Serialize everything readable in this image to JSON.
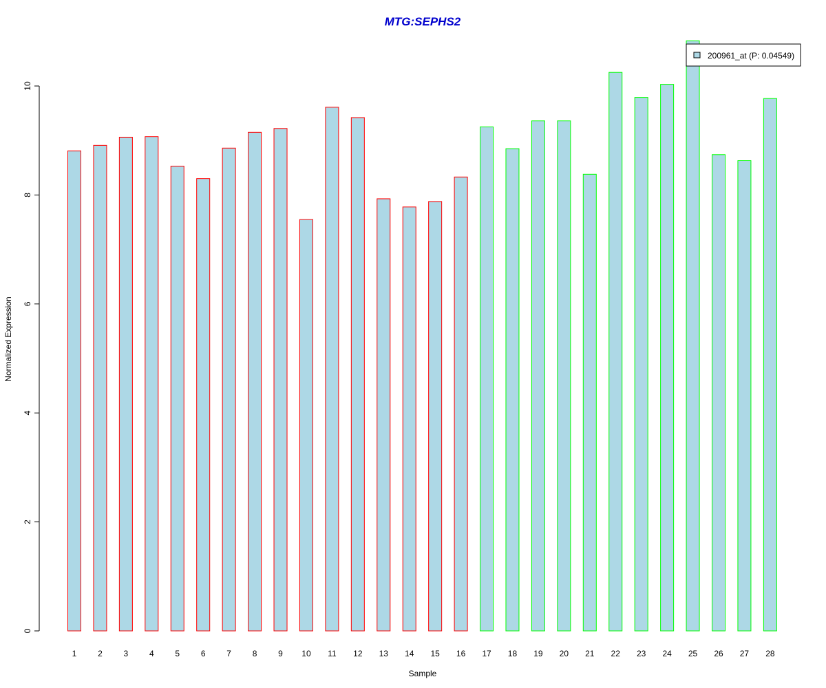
{
  "chart_data": {
    "type": "bar",
    "title": "MTG:SEPHS2",
    "xlabel": "Sample",
    "ylabel": "Normalized Expression",
    "categories": [
      "1",
      "2",
      "3",
      "4",
      "5",
      "6",
      "7",
      "8",
      "9",
      "10",
      "11",
      "12",
      "13",
      "14",
      "15",
      "16",
      "17",
      "18",
      "19",
      "20",
      "21",
      "22",
      "23",
      "24",
      "25",
      "26",
      "27",
      "28"
    ],
    "series": [
      {
        "name": "200961_at (P: 0.04549)",
        "values": [
          8.81,
          8.91,
          9.06,
          9.07,
          8.53,
          8.3,
          8.86,
          9.15,
          9.22,
          7.55,
          9.61,
          9.42,
          7.93,
          7.78,
          7.88,
          8.33,
          9.25,
          8.85,
          9.36,
          9.36,
          8.38,
          10.25,
          9.79,
          10.03,
          10.83,
          8.74,
          8.63,
          9.77
        ]
      }
    ],
    "group_outline": [
      "red",
      "red",
      "red",
      "red",
      "red",
      "red",
      "red",
      "red",
      "red",
      "red",
      "red",
      "red",
      "red",
      "red",
      "red",
      "red",
      "green",
      "green",
      "green",
      "green",
      "green",
      "green",
      "green",
      "green",
      "green",
      "green",
      "green",
      "green"
    ],
    "ylim": [
      0,
      10.83
    ],
    "yticks": [
      0,
      2,
      4,
      6,
      8,
      10
    ],
    "legend_position": "top-right",
    "grid": false
  },
  "colors": {
    "bar_fill": "#add8e6",
    "red": "#ff0000",
    "green": "#00ff00",
    "title": "#0000cd"
  }
}
